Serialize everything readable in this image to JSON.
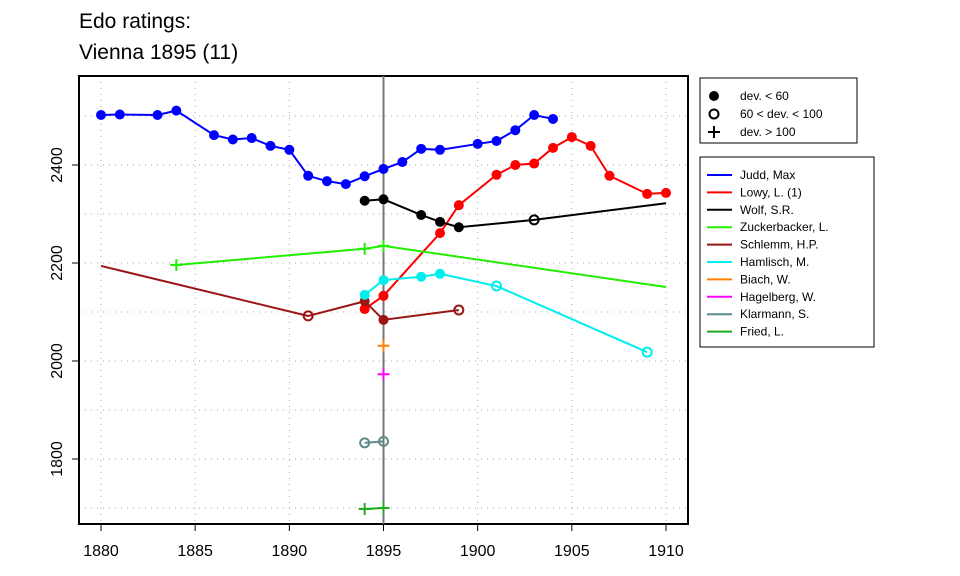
{
  "chart_data": {
    "type": "line",
    "title": [
      "Edo ratings:",
      "Vienna 1895 (11)"
    ],
    "xlabel": "",
    "ylabel": "",
    "xlim": [
      1880,
      1910
    ],
    "ylim": [
      1680,
      2545
    ],
    "xticks": [
      1880,
      1885,
      1890,
      1895,
      1900,
      1905,
      1910
    ],
    "yticks": [
      1800,
      2000,
      2200,
      2400
    ],
    "grid": true,
    "reference_line_x": 1895,
    "marker_legend": [
      {
        "marker": "filled",
        "label": "dev. < 60"
      },
      {
        "marker": "open",
        "label": "60 < dev. < 100"
      },
      {
        "marker": "plus",
        "label": "dev. > 100"
      }
    ],
    "series": [
      {
        "name": "Judd, Max",
        "color": "#0000ff",
        "points": [
          [
            1880,
            2502,
            "f"
          ],
          [
            1881,
            2503,
            "f"
          ],
          [
            1883,
            2502,
            "f"
          ],
          [
            1884,
            2511,
            "f"
          ],
          [
            1886,
            2461,
            "f"
          ],
          [
            1887,
            2452,
            "f"
          ],
          [
            1888,
            2455,
            "f"
          ],
          [
            1889,
            2439,
            "f"
          ],
          [
            1890,
            2431,
            "f"
          ],
          [
            1891,
            2378,
            "f"
          ],
          [
            1892,
            2367,
            "f"
          ],
          [
            1893,
            2361,
            "f"
          ],
          [
            1894,
            2377,
            "f"
          ],
          [
            1895,
            2392,
            "f"
          ],
          [
            1896,
            2406,
            "f"
          ],
          [
            1897,
            2433,
            "f"
          ],
          [
            1898,
            2431,
            "f"
          ],
          [
            1900,
            2443,
            "f"
          ],
          [
            1901,
            2449,
            "f"
          ],
          [
            1902,
            2471,
            "f"
          ],
          [
            1903,
            2502,
            "f"
          ],
          [
            1904,
            2494,
            "f"
          ]
        ]
      },
      {
        "name": "Lowy, L. (1)",
        "color": "#ff0000",
        "points": [
          [
            1894,
            2106,
            "f"
          ],
          [
            1895,
            2133,
            "f"
          ],
          [
            1898,
            2261,
            "f"
          ],
          [
            1899,
            2318,
            "f"
          ],
          [
            1901,
            2380,
            "f"
          ],
          [
            1902,
            2400,
            "f"
          ],
          [
            1903,
            2403,
            "f"
          ],
          [
            1904,
            2435,
            "f"
          ],
          [
            1905,
            2457,
            "f"
          ],
          [
            1906,
            2439,
            "f"
          ],
          [
            1907,
            2378,
            "f"
          ],
          [
            1909,
            2341,
            "f"
          ],
          [
            1910,
            2343,
            "f"
          ]
        ]
      },
      {
        "name": "Wolf, S.R.",
        "color": "#000000",
        "points": [
          [
            1894,
            2327,
            "f"
          ],
          [
            1895,
            2330,
            "f"
          ],
          [
            1897,
            2298,
            "f"
          ],
          [
            1898,
            2284,
            "f"
          ],
          [
            1899,
            2273,
            "f"
          ],
          [
            1903,
            2288,
            "o"
          ],
          [
            1910,
            2322,
            "n"
          ]
        ]
      },
      {
        "name": "Zuckerbacker, L.",
        "color": "#22ee00",
        "points": [
          [
            1884,
            2196,
            "p"
          ],
          [
            1894,
            2229,
            "p"
          ],
          [
            1895,
            2235,
            "p"
          ],
          [
            1910,
            2151,
            "n"
          ]
        ]
      },
      {
        "name": "Schlemm, H.P.",
        "color": "#9b1515",
        "points": [
          [
            1880,
            2194,
            "n"
          ],
          [
            1891,
            2092,
            "o"
          ],
          [
            1894,
            2122,
            "f"
          ],
          [
            1895,
            2084,
            "f"
          ],
          [
            1899,
            2104,
            "o"
          ]
        ]
      },
      {
        "name": "Hamlisch, M.",
        "color": "#00eeee",
        "points": [
          [
            1894,
            2135,
            "f"
          ],
          [
            1895,
            2165,
            "f"
          ],
          [
            1897,
            2172,
            "f"
          ],
          [
            1898,
            2178,
            "f"
          ],
          [
            1901,
            2153,
            "o"
          ],
          [
            1909,
            2018,
            "o"
          ]
        ]
      },
      {
        "name": "Biach, W.",
        "color": "#ff7f00",
        "points": [
          [
            1895,
            2031,
            "p"
          ]
        ]
      },
      {
        "name": "Hagelberg, W.",
        "color": "#ff00ff",
        "points": [
          [
            1895,
            1973,
            "p"
          ]
        ]
      },
      {
        "name": "Klarmann, S.",
        "color": "#5f8a8b",
        "points": [
          [
            1894,
            1833,
            "o"
          ],
          [
            1895,
            1836,
            "o"
          ]
        ]
      },
      {
        "name": "Fried, L.",
        "color": "#1faa1f",
        "points": [
          [
            1894,
            1698,
            "p"
          ],
          [
            1895,
            1700,
            "p"
          ]
        ]
      }
    ]
  }
}
